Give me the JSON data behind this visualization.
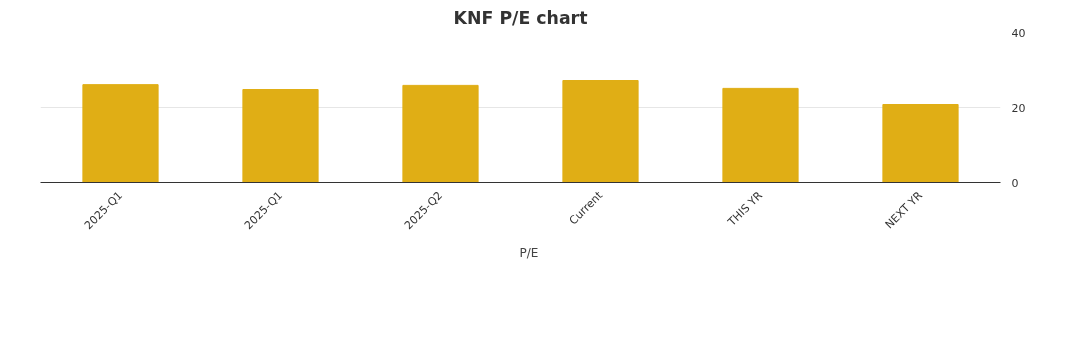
{
  "chart_data": {
    "type": "bar",
    "title": "KNF P/E chart",
    "categories": [
      "2025-Q1",
      "2025-Q1",
      "2025-Q2",
      "Current",
      "THIS YR",
      "NEXT YR"
    ],
    "series": [
      {
        "name": "P/E",
        "color": "#e0ae15",
        "values": [
          26.1,
          24.8,
          25.9,
          27.2,
          25.1,
          20.8
        ]
      }
    ],
    "ylim": [
      0,
      40
    ],
    "yticks": [
      0,
      20,
      40
    ],
    "grid": "y",
    "legend": "bottom"
  }
}
